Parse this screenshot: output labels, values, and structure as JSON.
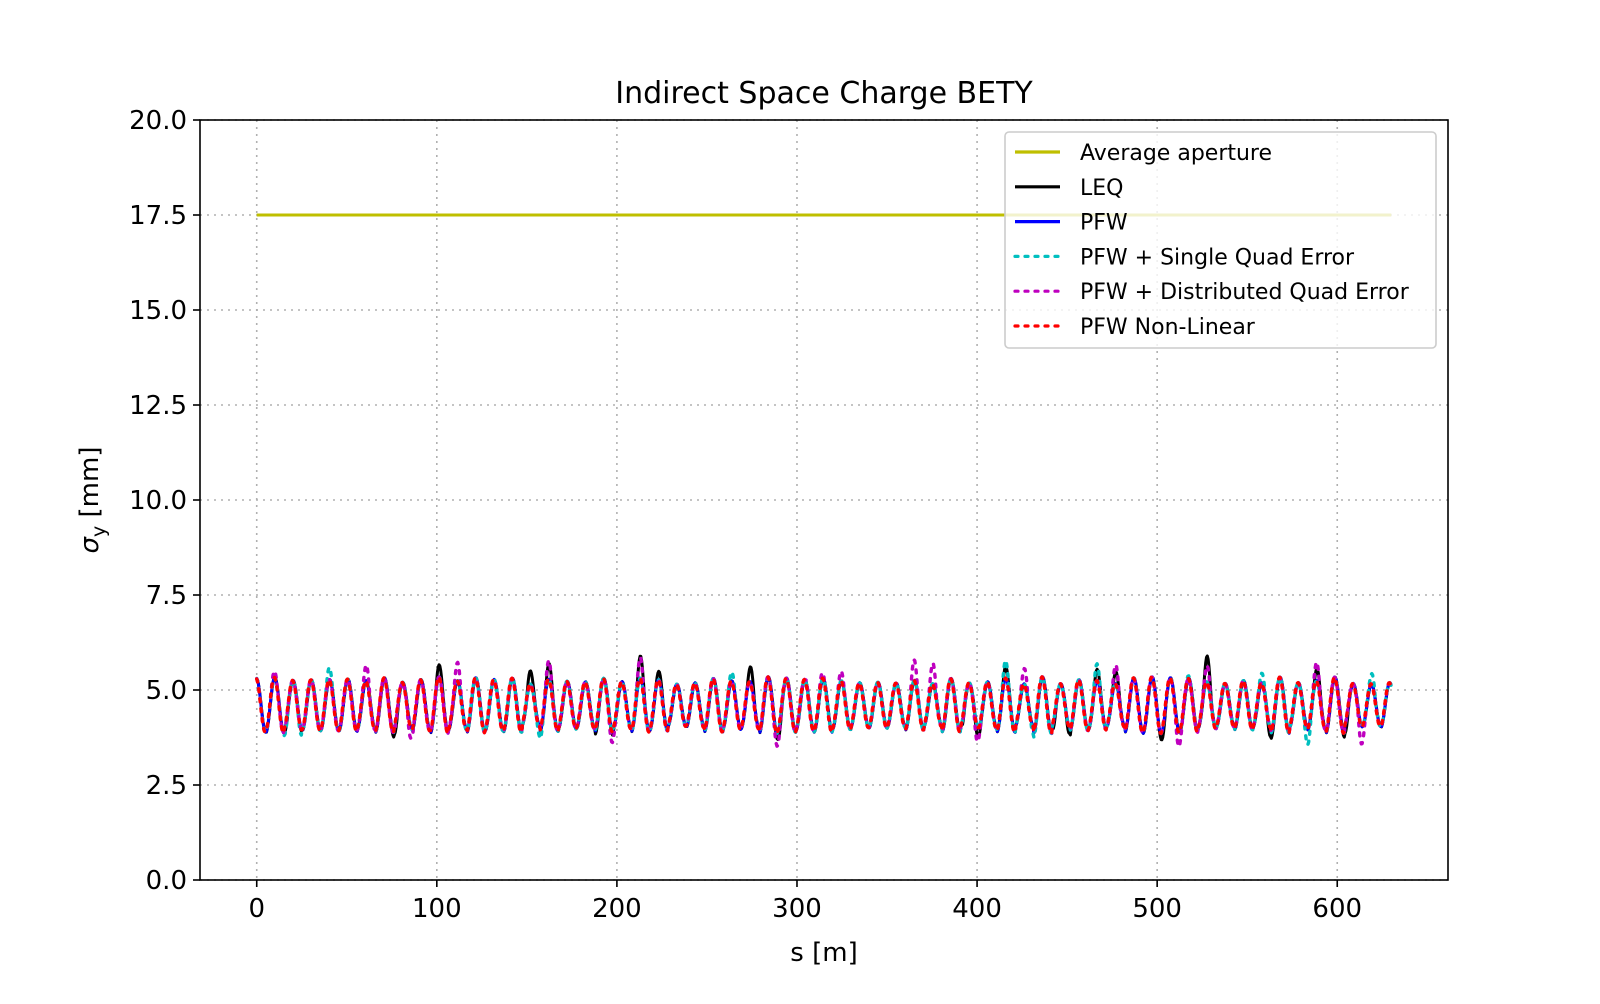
{
  "chart_data": {
    "type": "line",
    "title": "Indirect Space Charge BETY",
    "xlabel": "s [m]",
    "ylabel_main": "σ",
    "ylabel_sub": "y",
    "ylabel_unit": " [mm]",
    "xlim": [
      -31.5,
      661.5
    ],
    "ylim": [
      0,
      20
    ],
    "xticks": [
      0,
      100,
      200,
      300,
      400,
      500,
      600
    ],
    "xtick_labels": [
      "0",
      "100",
      "200",
      "300",
      "400",
      "500",
      "600"
    ],
    "yticks": [
      0,
      2.5,
      5,
      7.5,
      10,
      12.5,
      15,
      17.5,
      20
    ],
    "ytick_labels": [
      "0.0",
      "2.5",
      "5.0",
      "7.5",
      "10.0",
      "12.5",
      "15.0",
      "17.5",
      "20.0"
    ],
    "grid": true,
    "legend_position": "top-right",
    "x_range": [
      0,
      630
    ],
    "oscillation": {
      "period_m": 10.15,
      "mean_mm": 4.6,
      "amplitude_mm": 0.65,
      "min_mm": 3.4,
      "max_mm": 5.9
    },
    "series": [
      {
        "name": "Average aperture",
        "color": "#bfbf00",
        "style": "solid",
        "x": [
          0,
          630
        ],
        "values": [
          17.5,
          17.5
        ]
      },
      {
        "name": "LEQ",
        "color": "#000000",
        "style": "solid",
        "peaks": [
          [
            0,
            5.3
          ],
          [
            100,
            5.7
          ],
          [
            150,
            5.6
          ],
          [
            162,
            5.7
          ],
          [
            213,
            5.9
          ],
          [
            224,
            5.5
          ],
          [
            276,
            5.7
          ],
          [
            414,
            5.7
          ],
          [
            465,
            5.6
          ],
          [
            478,
            5.5
          ],
          [
            528,
            5.9
          ],
          [
            590,
            5.6
          ]
        ],
        "troughs": [
          [
            20,
            3.7
          ],
          [
            80,
            3.6
          ],
          [
            193,
            3.6
          ],
          [
            292,
            3.6
          ],
          [
            397,
            3.5
          ],
          [
            447,
            3.5
          ],
          [
            505,
            3.6
          ],
          [
            560,
            3.6
          ],
          [
            608,
            3.6
          ]
        ]
      },
      {
        "name": "PFW",
        "color": "#0000ff",
        "style": "solid"
      },
      {
        "name": "PFW + Single Quad Error",
        "color": "#00bfbf",
        "style": "dotted",
        "peaks": [
          [
            40,
            5.6
          ],
          [
            200,
            5.2
          ],
          [
            265,
            5.5
          ],
          [
            415,
            5.8
          ],
          [
            466,
            5.7
          ],
          [
            515,
            5.4
          ],
          [
            560,
            5.5
          ],
          [
            622,
            5.6
          ]
        ],
        "troughs": [
          [
            20,
            3.4
          ],
          [
            160,
            3.6
          ],
          [
            435,
            3.6
          ],
          [
            585,
            3.5
          ]
        ]
      },
      {
        "name": "PFW + Distributed Quad Error",
        "color": "#bf00bf",
        "style": "dotted",
        "peaks": [
          [
            10,
            5.5
          ],
          [
            63,
            5.8
          ],
          [
            113,
            5.8
          ],
          [
            163,
            5.8
          ],
          [
            214,
            5.9
          ],
          [
            310,
            5.7
          ],
          [
            325,
            5.5
          ],
          [
            365,
            5.8
          ],
          [
            377,
            5.8
          ],
          [
            429,
            5.8
          ],
          [
            479,
            5.8
          ],
          [
            530,
            5.8
          ],
          [
            590,
            5.8
          ]
        ],
        "troughs": [
          [
            82,
            3.4
          ],
          [
            195,
            3.5
          ],
          [
            290,
            3.5
          ],
          [
            397,
            3.3
          ],
          [
            510,
            3.4
          ],
          [
            612,
            3.5
          ]
        ]
      },
      {
        "name": "PFW Non-Linear",
        "color": "#ff0000",
        "style": "dotted"
      }
    ]
  }
}
